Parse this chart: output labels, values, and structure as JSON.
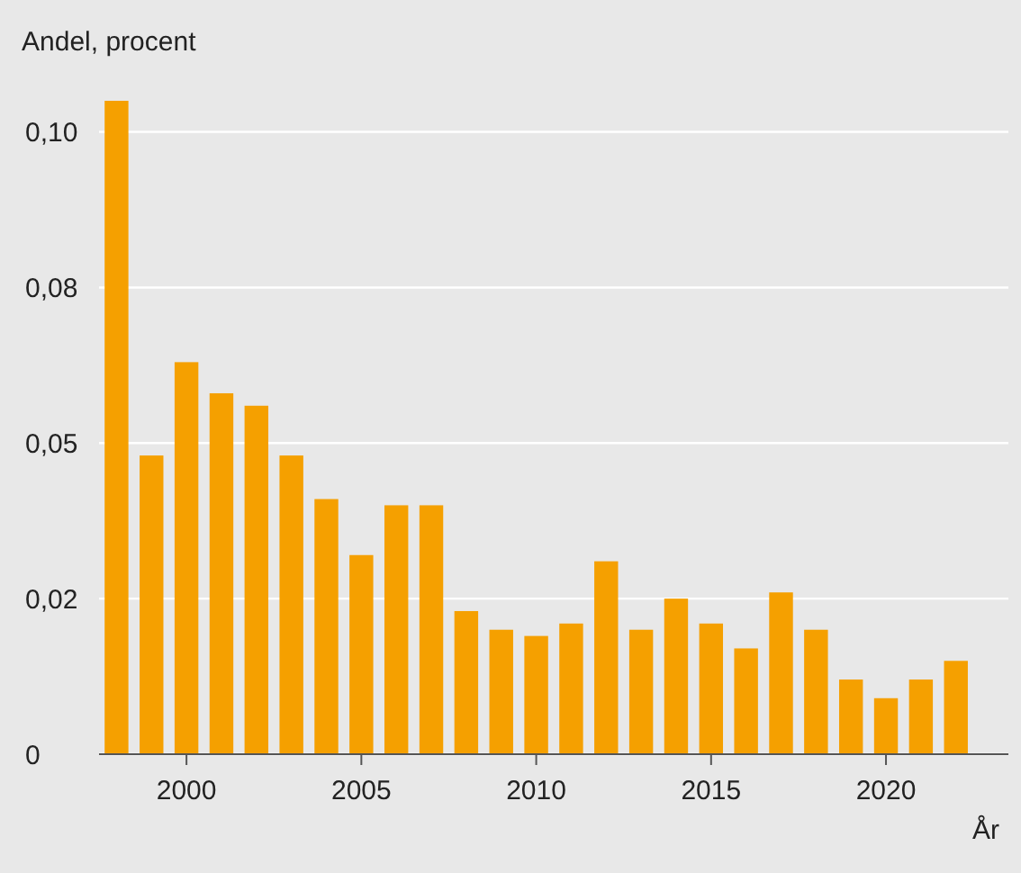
{
  "chart_data": {
    "type": "bar",
    "ylabel": "Andel, procent",
    "xlabel": "År",
    "x": [
      1998,
      1999,
      2000,
      2001,
      2002,
      2003,
      2004,
      2005,
      2006,
      2007,
      2008,
      2009,
      2010,
      2011,
      2012,
      2013,
      2014,
      2015,
      2016,
      2017,
      2018,
      2019,
      2020,
      2021,
      2022
    ],
    "values": [
      0.105,
      0.048,
      0.063,
      0.058,
      0.056,
      0.048,
      0.041,
      0.032,
      0.04,
      0.04,
      0.023,
      0.02,
      0.019,
      0.021,
      0.031,
      0.02,
      0.025,
      0.021,
      0.017,
      0.026,
      0.02,
      0.012,
      0.009,
      0.012,
      0.015
    ],
    "color": "#f5a000",
    "xlim": [
      1997.5,
      2023.5
    ],
    "xticks": [
      2000,
      2005,
      2010,
      2015,
      2020
    ],
    "ylim": [
      0,
      0.105
    ],
    "yticks": [
      0,
      {
        "value": 0.025,
        "label": "0,02"
      },
      {
        "value": 0.05,
        "label": "0,05"
      },
      {
        "value": 0.075,
        "label": "0,08"
      },
      {
        "value": 0.1,
        "label": "0,10"
      }
    ],
    "grid": "y"
  }
}
